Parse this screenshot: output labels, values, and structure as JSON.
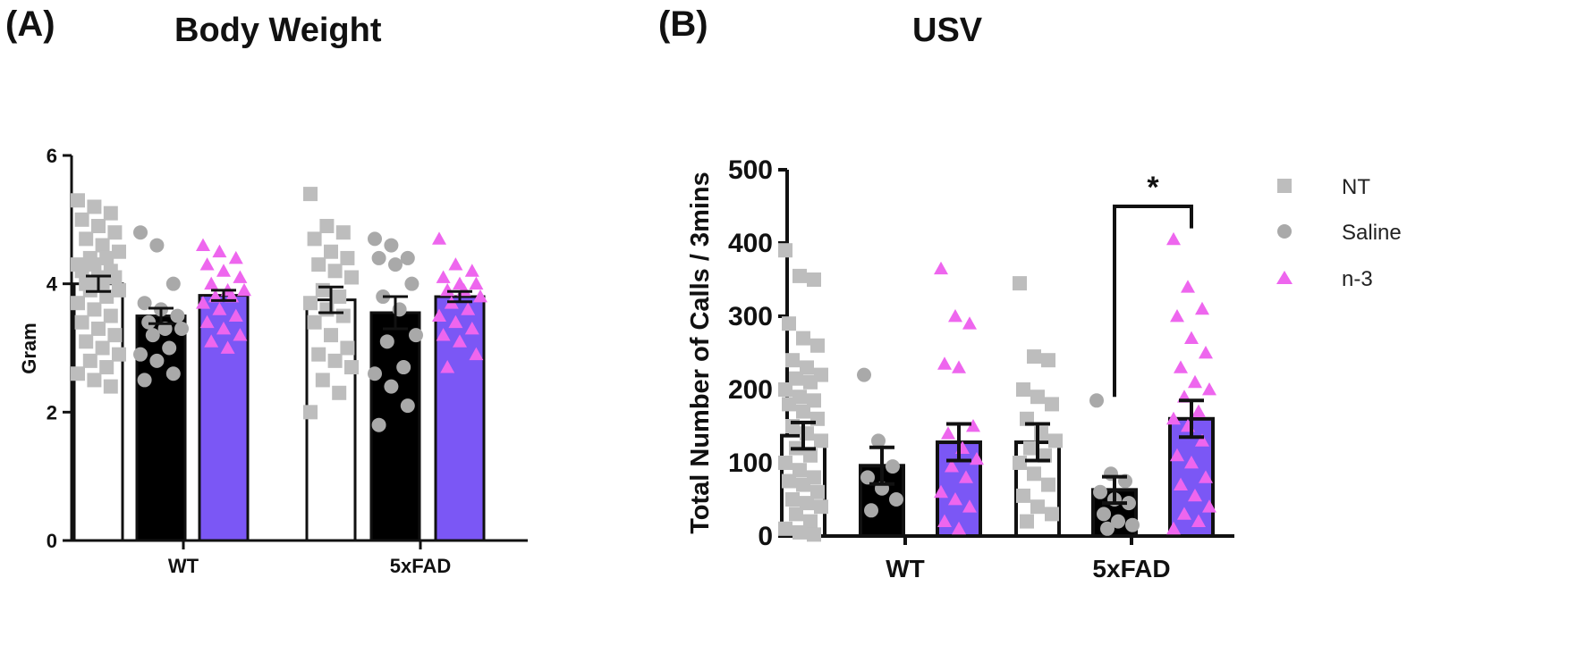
{
  "colors": {
    "nt_fill": "#ffffff",
    "saline_fill": "#000000",
    "n3_fill": "#7b57f5",
    "nt_point": "#bdbdbd",
    "saline_point": "#a9a9a9",
    "n3_point": "#ee66ee",
    "axis": "#111111"
  },
  "panels": {
    "a": {
      "label": "(A)",
      "title": "Body Weight"
    },
    "b": {
      "label": "(B)",
      "title": "USV"
    }
  },
  "legend": [
    {
      "name": "NT",
      "marker": "square",
      "color_key": "nt_point"
    },
    {
      "name": "Saline",
      "marker": "circle",
      "color_key": "saline_point"
    },
    {
      "name": "n-3",
      "marker": "triangle",
      "color_key": "n3_point"
    }
  ],
  "chart_data": [
    {
      "id": "a",
      "type": "bar",
      "title": "Body Weight",
      "ylabel": "Gram",
      "xlabel": "",
      "ylim": [
        0,
        6
      ],
      "yticks": [
        0,
        2,
        4,
        6
      ],
      "categories": [
        "WT",
        "5xFAD"
      ],
      "series": [
        {
          "name": "NT",
          "values": [
            4.0,
            3.75
          ],
          "sem": [
            0.12,
            0.2
          ],
          "points": [
            [
              5.3,
              5.2,
              5.1,
              5.0,
              4.9,
              4.8,
              4.7,
              4.6,
              4.5,
              4.4,
              4.4,
              4.3,
              4.3,
              4.2,
              4.2,
              4.1,
              4.1,
              4.0,
              4.0,
              3.9,
              3.9,
              3.8,
              3.7,
              3.6,
              3.5,
              3.4,
              3.3,
              3.2,
              3.1,
              3.0,
              2.9,
              2.8,
              2.7,
              2.6,
              2.5,
              2.4
            ],
            [
              5.4,
              4.9,
              4.8,
              4.7,
              4.5,
              4.4,
              4.3,
              4.2,
              4.1,
              3.9,
              3.8,
              3.7,
              3.6,
              3.5,
              3.4,
              3.2,
              3.0,
              2.9,
              2.8,
              2.7,
              2.5,
              2.3,
              2.0
            ]
          ]
        },
        {
          "name": "Saline",
          "values": [
            3.5,
            3.55
          ],
          "sem": [
            0.12,
            0.25
          ],
          "points": [
            [
              4.8,
              4.6,
              4.0,
              3.7,
              3.6,
              3.5,
              3.4,
              3.3,
              3.3,
              3.2,
              3.0,
              2.9,
              2.8,
              2.6,
              2.5
            ],
            [
              4.7,
              4.6,
              4.4,
              4.4,
              4.3,
              4.0,
              3.8,
              3.6,
              3.2,
              3.1,
              2.7,
              2.6,
              2.4,
              2.1,
              1.8
            ]
          ]
        },
        {
          "name": "n-3",
          "values": [
            3.82,
            3.8
          ],
          "sem": [
            0.08,
            0.08
          ],
          "points": [
            [
              4.6,
              4.5,
              4.4,
              4.3,
              4.2,
              4.1,
              4.0,
              3.9,
              3.9,
              3.8,
              3.8,
              3.7,
              3.6,
              3.5,
              3.4,
              3.3,
              3.2,
              3.1,
              3.0
            ],
            [
              4.7,
              4.3,
              4.2,
              4.1,
              4.0,
              4.0,
              3.9,
              3.9,
              3.8,
              3.7,
              3.6,
              3.5,
              3.4,
              3.3,
              3.2,
              3.1,
              2.9,
              2.7
            ]
          ]
        }
      ]
    },
    {
      "id": "b",
      "type": "bar",
      "title": "USV",
      "ylabel": "Total Number of Calls / 3mins",
      "xlabel": "",
      "ylim": [
        0,
        500
      ],
      "yticks": [
        0,
        100,
        200,
        300,
        400,
        500
      ],
      "categories": [
        "WT",
        "5xFAD"
      ],
      "series": [
        {
          "name": "NT",
          "values": [
            137,
            128
          ],
          "sem": [
            18,
            25
          ],
          "points": [
            [
              390,
              355,
              350,
              290,
              270,
              260,
              240,
              230,
              220,
              215,
              210,
              200,
              190,
              185,
              180,
              170,
              160,
              150,
              140,
              130,
              120,
              110,
              100,
              90,
              80,
              75,
              70,
              60,
              50,
              45,
              40,
              30,
              20,
              10,
              5,
              2
            ],
            [
              345,
              245,
              240,
              200,
              190,
              180,
              160,
              140,
              130,
              120,
              110,
              100,
              85,
              70,
              55,
              40,
              30,
              20
            ]
          ]
        },
        {
          "name": "Saline",
          "values": [
            96,
            63
          ],
          "sem": [
            25,
            18
          ],
          "points": [
            [
              220,
              130,
              95,
              80,
              65,
              50,
              35
            ],
            [
              185,
              85,
              75,
              60,
              50,
              45,
              30,
              20,
              15,
              10
            ]
          ]
        },
        {
          "name": "n-3",
          "values": [
            128,
            160
          ],
          "sem": [
            25,
            25
          ],
          "points": [
            [
              365,
              300,
              290,
              235,
              230,
              150,
              140,
              120,
              105,
              95,
              80,
              60,
              50,
              40,
              20,
              10
            ],
            [
              405,
              340,
              310,
              300,
              270,
              250,
              230,
              210,
              200,
              190,
              170,
              160,
              150,
              130,
              110,
              100,
              80,
              70,
              55,
              40,
              30,
              20,
              10
            ]
          ]
        }
      ],
      "annotations": [
        {
          "text": "*",
          "between": [
            "5xFAD Saline",
            "5xFAD n-3"
          ]
        }
      ]
    }
  ]
}
